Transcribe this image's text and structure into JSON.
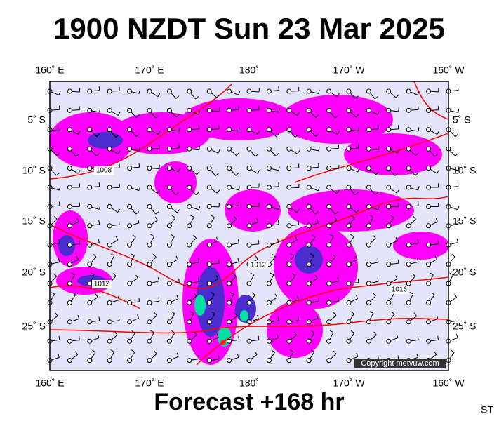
{
  "title": "1900 NZDT Sun 23 Mar 2025",
  "map": {
    "lon_labels": [
      "160˚ E",
      "170˚ E",
      "180˚",
      "170˚ W",
      "160˚ W"
    ],
    "lat_labels": [
      "5˚ S",
      "10˚ S",
      "15˚ S",
      "20˚ S",
      "25˚ S"
    ],
    "isobar_labels": [
      "1008",
      "1012",
      "1012",
      "1016"
    ],
    "copyright": "Copyright metvuw.com"
  },
  "footer": {
    "forecast": "Forecast +168 hr",
    "station": "ST"
  }
}
